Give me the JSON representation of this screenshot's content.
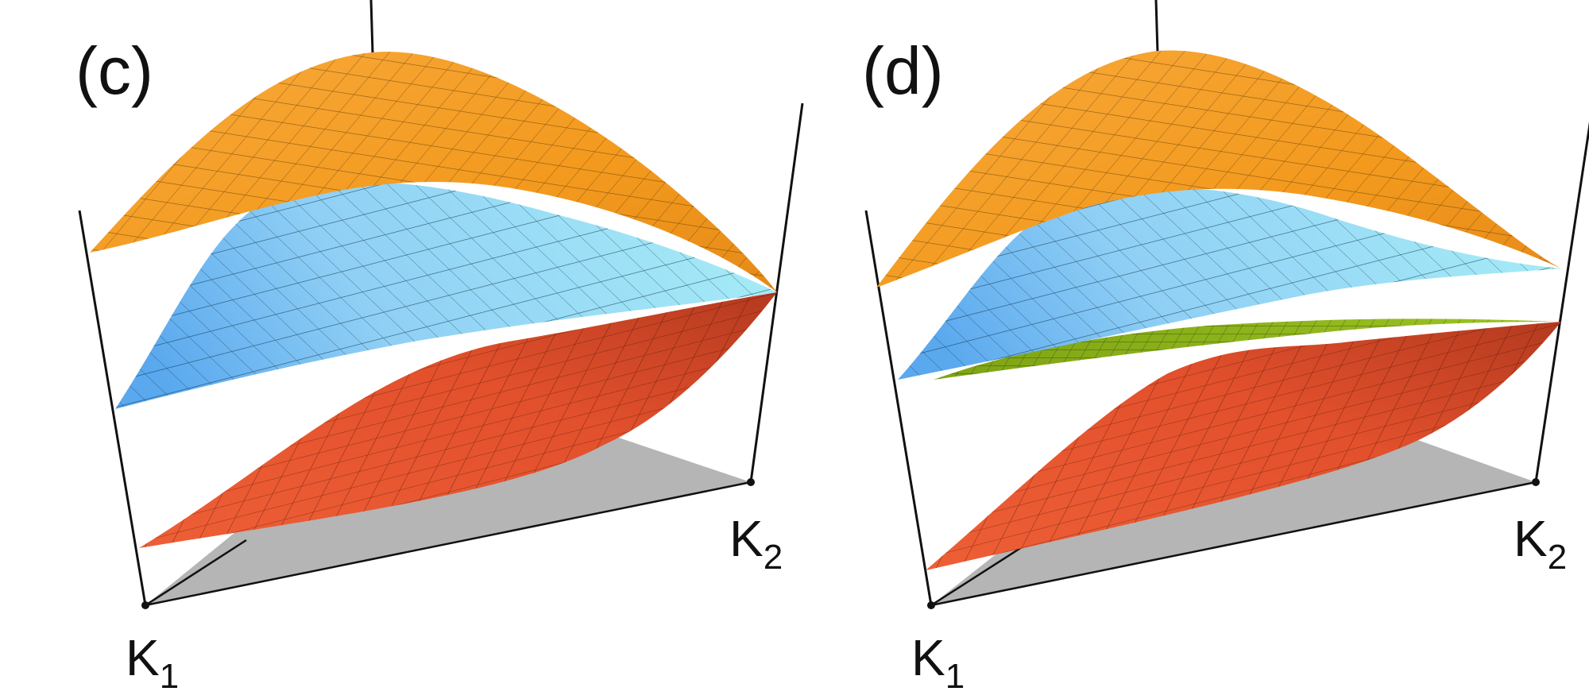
{
  "panels": [
    {
      "label": "(c)",
      "corner_a": {
        "letter": "K",
        "sub": "1"
      },
      "corner_b": {
        "letter": "K",
        "sub": "2"
      },
      "surfaces": [
        "orange",
        "blue",
        "red"
      ]
    },
    {
      "label": "(d)",
      "corner_a": {
        "letter": "K",
        "sub": "1"
      },
      "corner_b": {
        "letter": "K",
        "sub": "2"
      },
      "surfaces": [
        "orange",
        "blue",
        "green",
        "red"
      ]
    }
  ],
  "colors": {
    "orange": "#f39a1e",
    "orange_dark": "#e07a10",
    "blue": "#8fd8f5",
    "blue_dark": "#5aa8ee",
    "red": "#e2502c",
    "red_dark": "#b73a1e",
    "green": "#8fb51a",
    "green_dark": "#6c8c12",
    "floor": "#b5b5b5",
    "axis": "#111111"
  }
}
